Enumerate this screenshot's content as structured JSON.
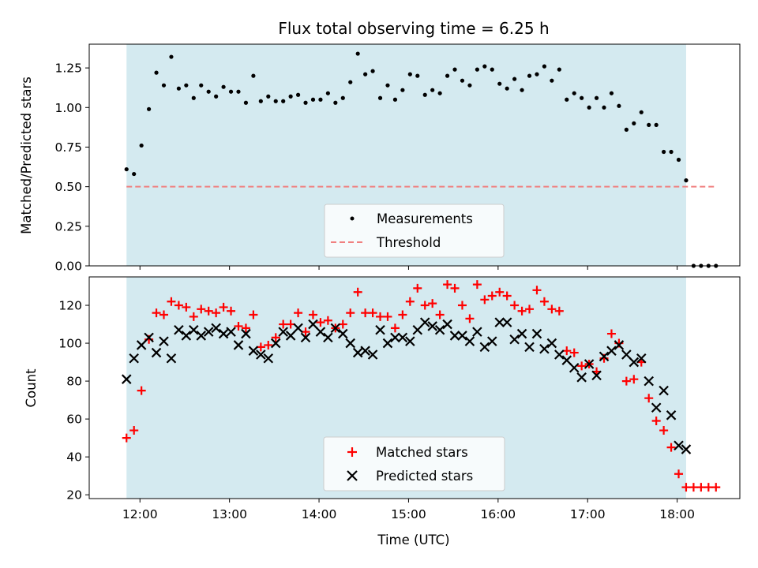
{
  "chart_data": [
    {
      "type": "scatter",
      "title": "Flux total observing time = 6.25 h",
      "xlabel": "",
      "ylabel": "Matched/Predicted stars",
      "ylim": [
        0,
        1.4
      ],
      "yticks": [
        0.0,
        0.25,
        0.5,
        0.75,
        1.0,
        1.25
      ],
      "ytick_labels": [
        "0.00",
        "0.25",
        "0.50",
        "0.75",
        "1.00",
        "1.25"
      ],
      "xlim": [
        "11:26",
        "18:42"
      ],
      "observing_window": [
        "11:51",
        "18:06"
      ],
      "window_color": "#d4eaf0",
      "legend_position": "lower center",
      "series": [
        {
          "name": "Measurements",
          "marker": "dot",
          "color": "#000000",
          "x": [
            "11:51",
            "11:56",
            "12:01",
            "12:06",
            "12:11",
            "12:16",
            "12:21",
            "12:26",
            "12:31",
            "12:36",
            "12:41",
            "12:46",
            "12:51",
            "12:56",
            "13:01",
            "13:06",
            "13:11",
            "13:16",
            "13:21",
            "13:26",
            "13:31",
            "13:36",
            "13:41",
            "13:46",
            "13:51",
            "13:56",
            "14:01",
            "14:06",
            "14:11",
            "14:16",
            "14:21",
            "14:26",
            "14:31",
            "14:36",
            "14:41",
            "14:46",
            "14:51",
            "14:56",
            "15:01",
            "15:06",
            "15:11",
            "15:16",
            "15:21",
            "15:26",
            "15:31",
            "15:36",
            "15:41",
            "15:46",
            "15:51",
            "15:56",
            "16:01",
            "16:06",
            "16:11",
            "16:16",
            "16:21",
            "16:26",
            "16:31",
            "16:36",
            "16:41",
            "16:46",
            "16:51",
            "16:56",
            "17:01",
            "17:06",
            "17:11",
            "17:16",
            "17:21",
            "17:26",
            "17:31",
            "17:36",
            "17:41",
            "17:46",
            "17:51",
            "17:56",
            "18:01",
            "18:06",
            "18:11",
            "18:16",
            "18:21",
            "18:26"
          ],
          "y": [
            0.61,
            0.58,
            0.76,
            0.99,
            1.22,
            1.14,
            1.32,
            1.12,
            1.14,
            1.06,
            1.14,
            1.1,
            1.07,
            1.13,
            1.1,
            1.1,
            1.03,
            1.2,
            1.04,
            1.07,
            1.04,
            1.04,
            1.07,
            1.08,
            1.03,
            1.05,
            1.05,
            1.09,
            1.03,
            1.06,
            1.16,
            1.34,
            1.21,
            1.23,
            1.06,
            1.14,
            1.05,
            1.11,
            1.21,
            1.2,
            1.08,
            1.11,
            1.09,
            1.2,
            1.24,
            1.17,
            1.14,
            1.24,
            1.26,
            1.24,
            1.15,
            1.12,
            1.18,
            1.11,
            1.2,
            1.21,
            1.26,
            1.17,
            1.24,
            1.05,
            1.09,
            1.06,
            1.0,
            1.06,
            1.0,
            1.09,
            1.01,
            0.86,
            0.9,
            0.97,
            0.89,
            0.89,
            0.72,
            0.72,
            0.67,
            0.54,
            0.0,
            0.0,
            0.0,
            0.0
          ]
        },
        {
          "name": "Threshold",
          "marker": "dashed-line",
          "color": "#f08080",
          "x": [
            "11:51",
            "18:26"
          ],
          "y": [
            0.5,
            0.5
          ]
        }
      ]
    },
    {
      "type": "scatter",
      "title": "",
      "xlabel": "Time (UTC)",
      "ylabel": "Count",
      "ylim": [
        18,
        135
      ],
      "yticks": [
        20,
        40,
        60,
        80,
        100,
        120
      ],
      "xticks": [
        "12:00",
        "13:00",
        "14:00",
        "15:00",
        "16:00",
        "17:00",
        "18:00"
      ],
      "xlim": [
        "11:26",
        "18:42"
      ],
      "observing_window": [
        "11:51",
        "18:06"
      ],
      "window_color": "#d4eaf0",
      "legend_position": "lower center",
      "series": [
        {
          "name": "Matched stars",
          "marker": "plus",
          "color": "#ff0000",
          "x": [
            "11:51",
            "11:56",
            "12:01",
            "12:06",
            "12:11",
            "12:16",
            "12:21",
            "12:26",
            "12:31",
            "12:36",
            "12:41",
            "12:46",
            "12:51",
            "12:56",
            "13:01",
            "13:06",
            "13:11",
            "13:16",
            "13:21",
            "13:26",
            "13:31",
            "13:36",
            "13:41",
            "13:46",
            "13:51",
            "13:56",
            "14:01",
            "14:06",
            "14:11",
            "14:16",
            "14:21",
            "14:26",
            "14:31",
            "14:36",
            "14:41",
            "14:46",
            "14:51",
            "14:56",
            "15:01",
            "15:06",
            "15:11",
            "15:16",
            "15:21",
            "15:26",
            "15:31",
            "15:36",
            "15:41",
            "15:46",
            "15:51",
            "15:56",
            "16:01",
            "16:06",
            "16:11",
            "16:16",
            "16:21",
            "16:26",
            "16:31",
            "16:36",
            "16:41",
            "16:46",
            "16:51",
            "16:56",
            "17:01",
            "17:06",
            "17:11",
            "17:16",
            "17:21",
            "17:26",
            "17:31",
            "17:36",
            "17:41",
            "17:46",
            "17:51",
            "17:56",
            "18:01",
            "18:06",
            "18:11",
            "18:16",
            "18:21",
            "18:26"
          ],
          "y": [
            50,
            54,
            75,
            102,
            116,
            115,
            122,
            120,
            119,
            114,
            118,
            117,
            116,
            119,
            117,
            109,
            108,
            115,
            98,
            99,
            103,
            110,
            110,
            116,
            106,
            115,
            111,
            112,
            108,
            110,
            116,
            127,
            116,
            116,
            114,
            114,
            108,
            115,
            122,
            129,
            120,
            121,
            115,
            131,
            129,
            120,
            113,
            131,
            123,
            125,
            127,
            125,
            120,
            117,
            118,
            128,
            122,
            118,
            117,
            96,
            95,
            88,
            89,
            85,
            92,
            105,
            100,
            80,
            81,
            90,
            71,
            59,
            54,
            45,
            31,
            24,
            24,
            24,
            24,
            24
          ]
        },
        {
          "name": "Predicted stars",
          "marker": "x",
          "color": "#000000",
          "x": [
            "11:51",
            "11:56",
            "12:01",
            "12:06",
            "12:11",
            "12:16",
            "12:21",
            "12:26",
            "12:31",
            "12:36",
            "12:41",
            "12:46",
            "12:51",
            "12:56",
            "13:01",
            "13:06",
            "13:11",
            "13:16",
            "13:21",
            "13:26",
            "13:31",
            "13:36",
            "13:41",
            "13:46",
            "13:51",
            "13:56",
            "14:01",
            "14:06",
            "14:11",
            "14:16",
            "14:21",
            "14:26",
            "14:31",
            "14:36",
            "14:41",
            "14:46",
            "14:51",
            "14:56",
            "15:01",
            "15:06",
            "15:11",
            "15:16",
            "15:21",
            "15:26",
            "15:31",
            "15:36",
            "15:41",
            "15:46",
            "15:51",
            "15:56",
            "16:01",
            "16:06",
            "16:11",
            "16:16",
            "16:21",
            "16:26",
            "16:31",
            "16:36",
            "16:41",
            "16:46",
            "16:51",
            "16:56",
            "17:01",
            "17:06",
            "17:11",
            "17:16",
            "17:21",
            "17:26",
            "17:31",
            "17:36",
            "17:41",
            "17:46",
            "17:51",
            "17:56",
            "18:01",
            "18:06"
          ],
          "y": [
            81,
            92,
            99,
            103,
            95,
            101,
            92,
            107,
            104,
            107,
            104,
            106,
            108,
            105,
            106,
            99,
            105,
            96,
            94,
            92,
            100,
            106,
            104,
            108,
            103,
            110,
            106,
            103,
            108,
            105,
            100,
            95,
            96,
            94,
            107,
            100,
            103,
            103,
            101,
            107,
            111,
            109,
            107,
            110,
            104,
            104,
            101,
            106,
            98,
            101,
            111,
            111,
            102,
            105,
            98,
            105,
            97,
            100,
            94,
            91,
            87,
            82,
            89,
            83,
            93,
            96,
            99,
            94,
            90,
            92,
            80,
            66,
            75,
            62,
            46,
            44
          ]
        }
      ]
    }
  ]
}
